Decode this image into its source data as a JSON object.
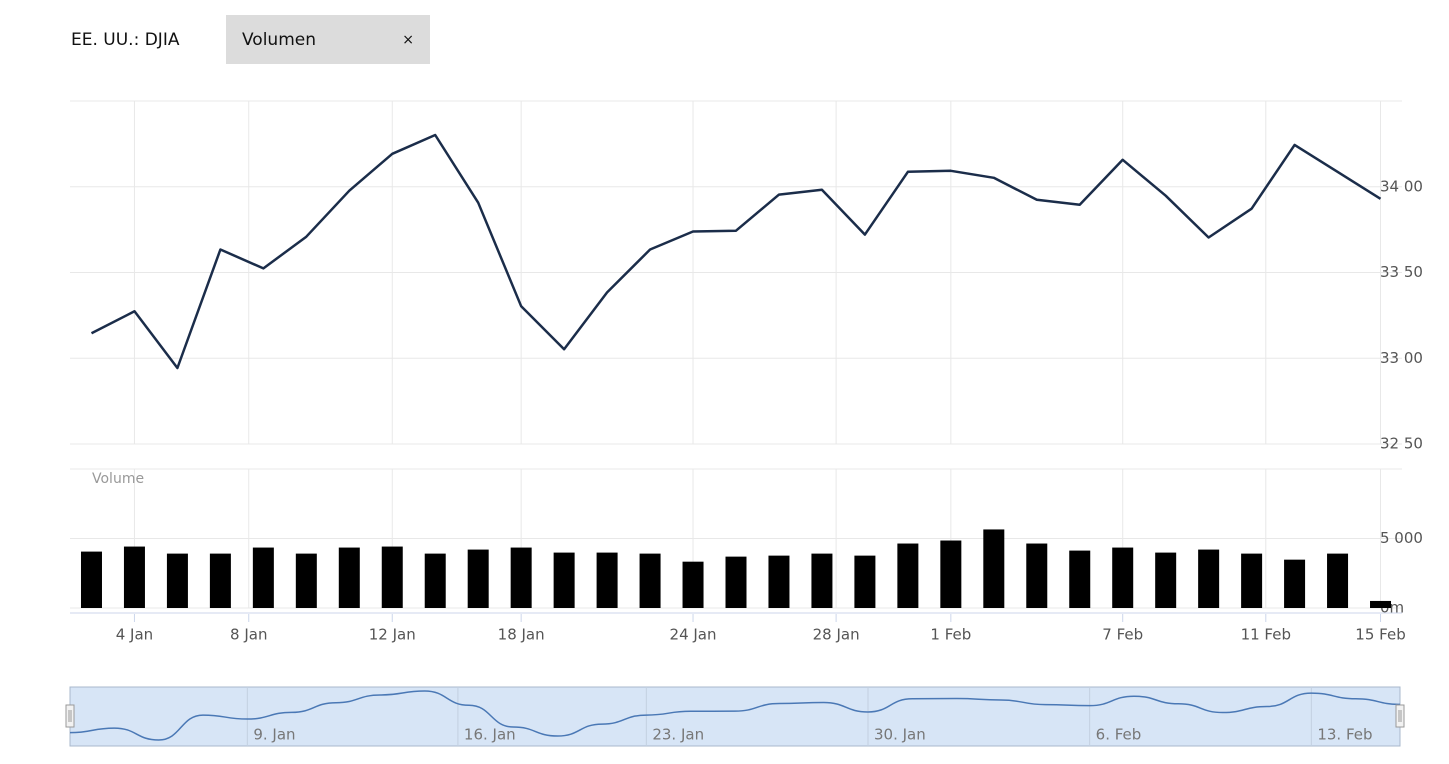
{
  "header": {
    "title": "EE. UU.: DJIA",
    "tag": "Volumen",
    "close": "×"
  },
  "chart_data": [
    {
      "type": "line",
      "color": "#1b2d4a",
      "categories": [
        null,
        null,
        null,
        null,
        null,
        null,
        null,
        null,
        null,
        null,
        null,
        null,
        null,
        null,
        null,
        null,
        null,
        null,
        null,
        null,
        null,
        null,
        null,
        null,
        null,
        null,
        null,
        null,
        null,
        null,
        null
      ],
      "values": [
        33146,
        33274,
        32943,
        33634,
        33524,
        33709,
        33977,
        34192,
        34302,
        33907,
        33303,
        33053,
        33384,
        33634,
        33739,
        33744,
        33954,
        33983,
        33721,
        34087,
        34093,
        34052,
        33924,
        33895,
        34157,
        33948,
        33704,
        33872,
        34244,
        34087,
        33930
      ],
      "ylim": [
        32500,
        34500
      ],
      "yticks": [
        {
          "value": 32500,
          "label": "32 50"
        },
        {
          "value": 33000,
          "label": "33 00"
        },
        {
          "value": 33500,
          "label": "33 50"
        },
        {
          "value": 34000,
          "label": "34 00"
        }
      ],
      "grid": true
    },
    {
      "type": "bar",
      "color": "#000000",
      "y_label": "Volume",
      "values": [
        4058,
        4420,
        3913,
        3913,
        4348,
        3913,
        4348,
        4420,
        3913,
        4203,
        4348,
        3986,
        3986,
        3913,
        3333,
        3696,
        3768,
        3913,
        3768,
        4638,
        4855,
        5652,
        4638,
        4130,
        4348,
        3986,
        4203,
        3913,
        3478,
        3913,
        507
      ],
      "ylim": [
        0,
        10000
      ],
      "yticks": [
        {
          "value": 0,
          "label": "0m"
        },
        {
          "value": 5000,
          "label": "5 000"
        }
      ],
      "xlim": [
        -0.5,
        30.5
      ],
      "xticks": [
        {
          "value": 1,
          "label": "4 Jan"
        },
        {
          "value": 3.66,
          "label": "8 Jan"
        },
        {
          "value": 7,
          "label": "12 Jan"
        },
        {
          "value": 10,
          "label": "18 Jan"
        },
        {
          "value": 14,
          "label": "24 Jan"
        },
        {
          "value": 17.33,
          "label": "28 Jan"
        },
        {
          "value": 20,
          "label": "1 Feb"
        },
        {
          "value": 24,
          "label": "7 Feb"
        },
        {
          "value": 27.33,
          "label": "11 Feb"
        },
        {
          "value": 30,
          "label": "15 Feb"
        }
      ],
      "grid": true
    }
  ],
  "navigator": {
    "xlim": [
      0,
      30
    ],
    "xticks": [
      {
        "value": 4,
        "label": "9. Jan"
      },
      {
        "value": 8.75,
        "label": "16. Jan"
      },
      {
        "value": 13,
        "label": "23. Jan"
      },
      {
        "value": 18,
        "label": "30. Jan"
      },
      {
        "value": 23,
        "label": "6. Feb"
      },
      {
        "value": 28,
        "label": "13. Feb"
      }
    ]
  }
}
